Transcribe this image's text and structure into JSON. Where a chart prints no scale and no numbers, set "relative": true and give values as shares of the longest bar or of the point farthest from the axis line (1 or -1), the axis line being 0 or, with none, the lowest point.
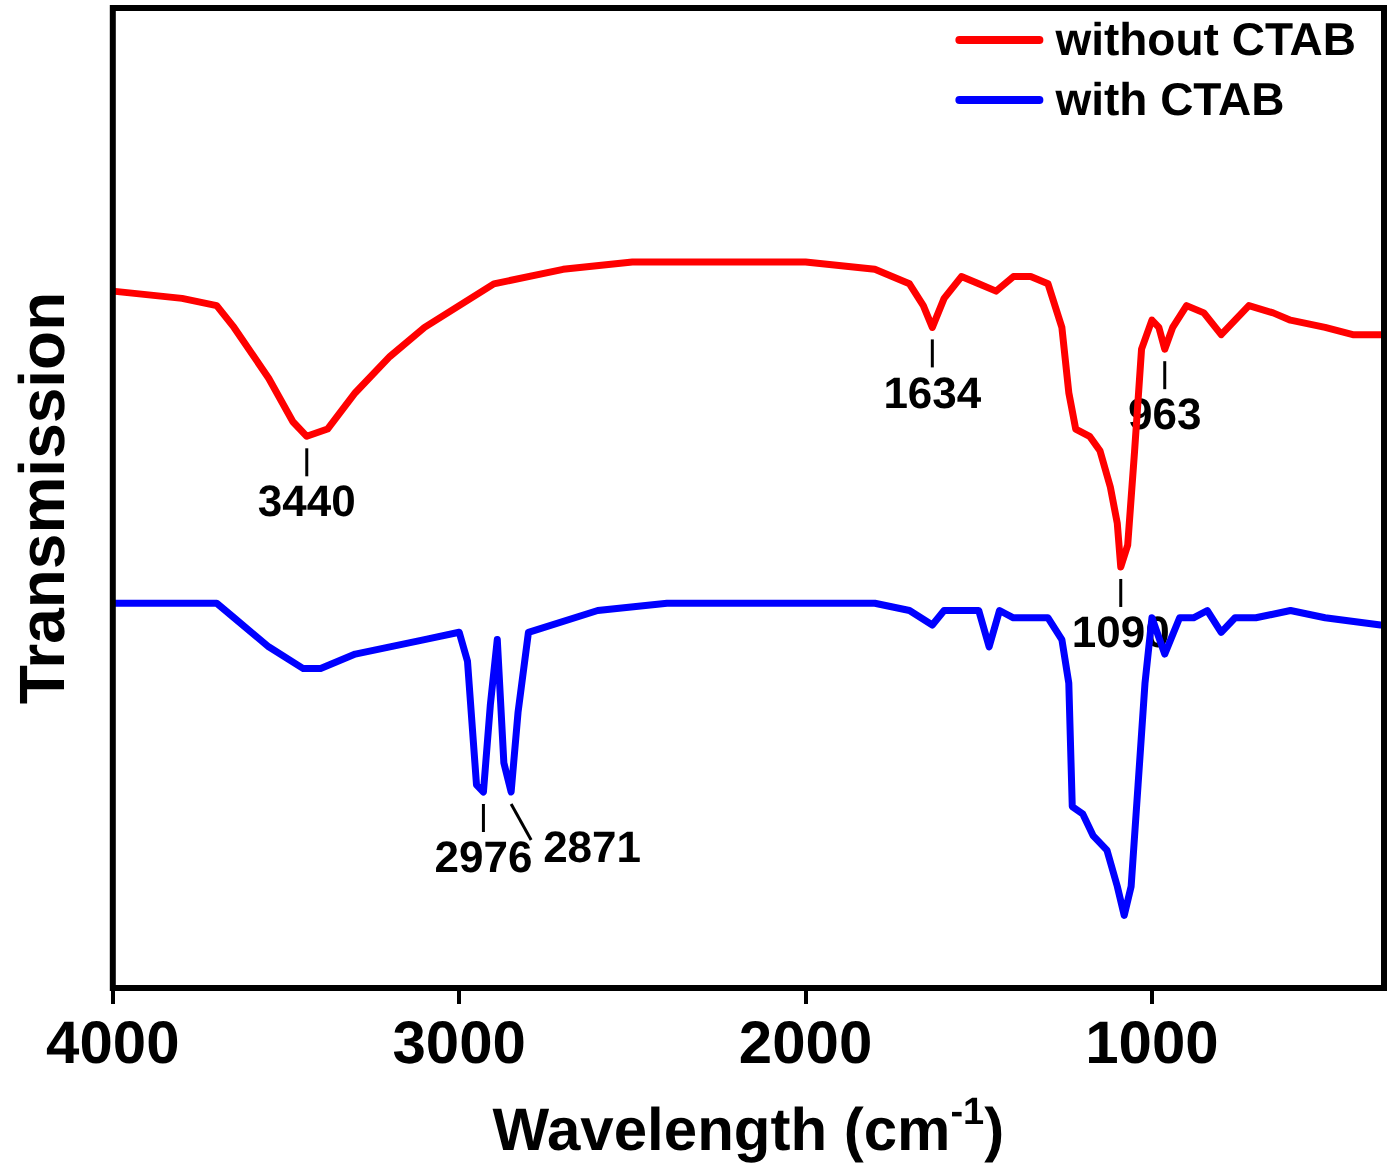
{
  "chart_data": {
    "type": "line",
    "relative": true,
    "xlabel": "Wavelength (cm$^{-1}$)",
    "ylabel": "Transmission",
    "xlim": [
      4000,
      330
    ],
    "xticks": [
      4000,
      3000,
      2000,
      1000
    ],
    "grid": false,
    "legend": "top right",
    "marker": "none",
    "line_style": "solid",
    "series": [
      {
        "name": "without CTAB",
        "color": "#ff0000",
        "x": [
          4000,
          3800,
          3700,
          3650,
          3550,
          3480,
          3440,
          3380,
          3300,
          3200,
          3100,
          3000,
          2900,
          2700,
          2500,
          2200,
          2000,
          1800,
          1700,
          1660,
          1634,
          1600,
          1550,
          1500,
          1450,
          1400,
          1350,
          1300,
          1260,
          1240,
          1220,
          1180,
          1150,
          1120,
          1100,
          1090,
          1070,
          1050,
          1030,
          1000,
          980,
          963,
          940,
          900,
          850,
          800,
          780,
          720,
          650,
          600,
          500,
          420,
          340
        ],
        "values": [
          0.96,
          0.95,
          0.94,
          0.91,
          0.84,
          0.78,
          0.76,
          0.77,
          0.82,
          0.87,
          0.91,
          0.94,
          0.97,
          0.99,
          1,
          1,
          1,
          0.99,
          0.97,
          0.94,
          0.91,
          0.95,
          0.98,
          0.97,
          0.96,
          0.98,
          0.98,
          0.97,
          0.91,
          0.82,
          0.77,
          0.76,
          0.74,
          0.69,
          0.64,
          0.58,
          0.61,
          0.74,
          0.88,
          0.92,
          0.91,
          0.88,
          0.91,
          0.94,
          0.93,
          0.9,
          0.91,
          0.94,
          0.93,
          0.92,
          0.91,
          0.9,
          0.9
        ]
      },
      {
        "name": "with CTAB",
        "color": "#0000ff",
        "x": [
          4000,
          3800,
          3700,
          3650,
          3550,
          3450,
          3400,
          3300,
          3200,
          3100,
          3000,
          2976,
          2950,
          2930,
          2910,
          2890,
          2871,
          2850,
          2830,
          2800,
          2600,
          2400,
          2000,
          1800,
          1700,
          1634,
          1600,
          1500,
          1470,
          1440,
          1400,
          1300,
          1260,
          1240,
          1230,
          1200,
          1170,
          1130,
          1100,
          1080,
          1060,
          1040,
          1020,
          1000,
          963,
          920,
          880,
          840,
          800,
          760,
          700,
          600,
          500,
          340
        ],
        "values": [
          0.53,
          0.53,
          0.53,
          0.51,
          0.47,
          0.44,
          0.44,
          0.46,
          0.47,
          0.48,
          0.49,
          0.45,
          0.28,
          0.27,
          0.39,
          0.48,
          0.31,
          0.27,
          0.38,
          0.49,
          0.52,
          0.53,
          0.53,
          0.53,
          0.52,
          0.5,
          0.52,
          0.52,
          0.47,
          0.52,
          0.51,
          0.51,
          0.48,
          0.42,
          0.25,
          0.24,
          0.21,
          0.19,
          0.14,
          0.1,
          0.14,
          0.28,
          0.42,
          0.51,
          0.46,
          0.51,
          0.51,
          0.52,
          0.49,
          0.51,
          0.51,
          0.52,
          0.51,
          0.5
        ]
      }
    ],
    "annotations": [
      {
        "text": "3440",
        "x": 3440,
        "y": 0.76
      },
      {
        "text": "1634",
        "x": 1634,
        "y": 0.91
      },
      {
        "text": "1090",
        "x": 1090,
        "y": 0.58
      },
      {
        "text": "963",
        "x": 963,
        "y": 0.88
      },
      {
        "text": "2976",
        "x": 2930,
        "y": 0.27
      },
      {
        "text": "2871",
        "x": 2850,
        "y": 0.27
      }
    ]
  }
}
